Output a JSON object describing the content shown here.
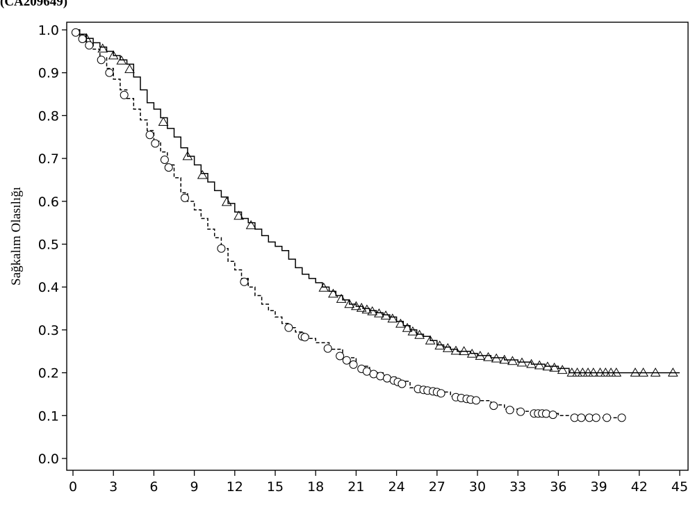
{
  "header": {
    "text": "(CA209649)"
  },
  "chart_data": {
    "type": "line",
    "title": "",
    "xlabel": "",
    "ylabel": "Sağkalım Olasılığı",
    "xlim": [
      0,
      45
    ],
    "ylim": [
      0,
      1.0
    ],
    "x_ticks": [
      "0",
      "3",
      "6",
      "9",
      "12",
      "15",
      "18",
      "21",
      "24",
      "27",
      "30",
      "33",
      "36",
      "39",
      "42",
      "45"
    ],
    "y_ticks": [
      "0.0",
      "0.1",
      "0.2",
      "0.3",
      "0.4",
      "0.5",
      "0.6",
      "0.7",
      "0.8",
      "0.9",
      "1.0"
    ],
    "grid": false,
    "legend": "none",
    "series": [
      {
        "line_style": "solid",
        "marker": "triangle",
        "color": "#000000",
        "x": [
          0,
          0.5,
          1,
          1.5,
          2,
          2.5,
          3,
          3.5,
          4,
          4.5,
          5,
          5.5,
          6,
          6.5,
          7,
          7.5,
          8,
          8.5,
          9,
          9.5,
          10,
          10.5,
          11,
          11.5,
          12,
          12.5,
          13,
          13.5,
          14,
          14.5,
          15,
          15.5,
          16,
          16.5,
          17,
          17.5,
          18,
          18.5,
          19,
          19.5,
          20,
          20.5,
          21,
          21.5,
          22,
          22.5,
          23,
          23.5,
          24,
          24.5,
          25,
          25.5,
          26,
          26.5,
          27,
          27.5,
          28,
          28.5,
          29,
          29.5,
          30,
          31,
          32,
          33,
          34,
          35,
          36,
          36.8,
          37,
          38,
          39,
          40,
          41,
          42,
          43,
          44,
          45
        ],
        "y": [
          1.0,
          0.99,
          0.98,
          0.97,
          0.96,
          0.95,
          0.94,
          0.93,
          0.92,
          0.89,
          0.86,
          0.83,
          0.815,
          0.795,
          0.77,
          0.75,
          0.725,
          0.705,
          0.685,
          0.665,
          0.645,
          0.625,
          0.61,
          0.595,
          0.575,
          0.56,
          0.55,
          0.535,
          0.52,
          0.505,
          0.495,
          0.485,
          0.465,
          0.445,
          0.43,
          0.42,
          0.41,
          0.4,
          0.39,
          0.38,
          0.37,
          0.36,
          0.355,
          0.35,
          0.345,
          0.34,
          0.335,
          0.33,
          0.32,
          0.31,
          0.3,
          0.29,
          0.285,
          0.275,
          0.265,
          0.26,
          0.255,
          0.25,
          0.25,
          0.245,
          0.24,
          0.235,
          0.23,
          0.225,
          0.22,
          0.215,
          0.21,
          0.2,
          0.2,
          0.2,
          0.2,
          0.2,
          0.2,
          0.2,
          0.2,
          0.2,
          0.2
        ],
        "censored_x": [
          1,
          2.2,
          3,
          3.6,
          4.2,
          6.7,
          8.5,
          9.6,
          11.4,
          12.3,
          13.2,
          18.6,
          19.3,
          19.9,
          20.5,
          21,
          21.4,
          21.8,
          22.2,
          22.7,
          23.2,
          23.7,
          24.3,
          24.8,
          25.2,
          25.7,
          26.5,
          27.2,
          27.8,
          28.4,
          29,
          29.6,
          30.2,
          30.8,
          31.4,
          32,
          32.6,
          33.3,
          34,
          34.6,
          35.2,
          35.7,
          36.3,
          37,
          37.4,
          37.8,
          38.2,
          38.6,
          39.1,
          39.5,
          39.9,
          40.3,
          41.7,
          42.3,
          43.2,
          44.5
        ]
      },
      {
        "line_style": "dashed",
        "marker": "circle",
        "color": "#000000",
        "x": [
          0,
          0.5,
          1,
          1.5,
          2,
          2.5,
          3,
          3.5,
          4,
          4.5,
          5,
          5.5,
          6,
          6.5,
          7,
          7.5,
          8,
          8.5,
          9,
          9.5,
          10,
          10.5,
          11,
          11.5,
          12,
          12.5,
          13,
          13.5,
          14,
          14.5,
          15,
          15.5,
          16,
          16.5,
          17,
          17.5,
          18,
          19,
          20,
          21,
          22,
          23,
          24,
          25,
          26,
          27,
          28,
          29,
          30,
          31,
          32,
          33,
          34,
          35,
          36,
          37,
          38,
          39,
          40,
          41
        ],
        "y": [
          1.0,
          0.985,
          0.97,
          0.955,
          0.935,
          0.91,
          0.885,
          0.86,
          0.84,
          0.815,
          0.79,
          0.765,
          0.74,
          0.715,
          0.685,
          0.655,
          0.62,
          0.6,
          0.58,
          0.56,
          0.535,
          0.515,
          0.49,
          0.46,
          0.44,
          0.42,
          0.4,
          0.38,
          0.36,
          0.345,
          0.33,
          0.315,
          0.305,
          0.295,
          0.285,
          0.28,
          0.27,
          0.255,
          0.235,
          0.215,
          0.2,
          0.19,
          0.18,
          0.165,
          0.16,
          0.155,
          0.145,
          0.14,
          0.135,
          0.125,
          0.115,
          0.11,
          0.105,
          0.105,
          0.1,
          0.095,
          0.095,
          0.095,
          0.095,
          0.095
        ],
        "censored_x": [
          0.2,
          0.7,
          1.2,
          2.1,
          2.7,
          3.8,
          5.7,
          6.1,
          6.8,
          7.1,
          8.3,
          11,
          12.7,
          16,
          17,
          17.2,
          18.9,
          19.8,
          20.3,
          20.8,
          21.4,
          21.8,
          22.3,
          22.8,
          23.3,
          23.8,
          24.1,
          24.4,
          25.6,
          26,
          26.3,
          26.7,
          27,
          27.3,
          28.4,
          28.8,
          29.2,
          29.5,
          29.9,
          31.2,
          32.4,
          33.2,
          34.2,
          34.5,
          34.8,
          35.1,
          35.6,
          37.2,
          37.7,
          38.3,
          38.8,
          39.6,
          40.7
        ]
      }
    ]
  }
}
